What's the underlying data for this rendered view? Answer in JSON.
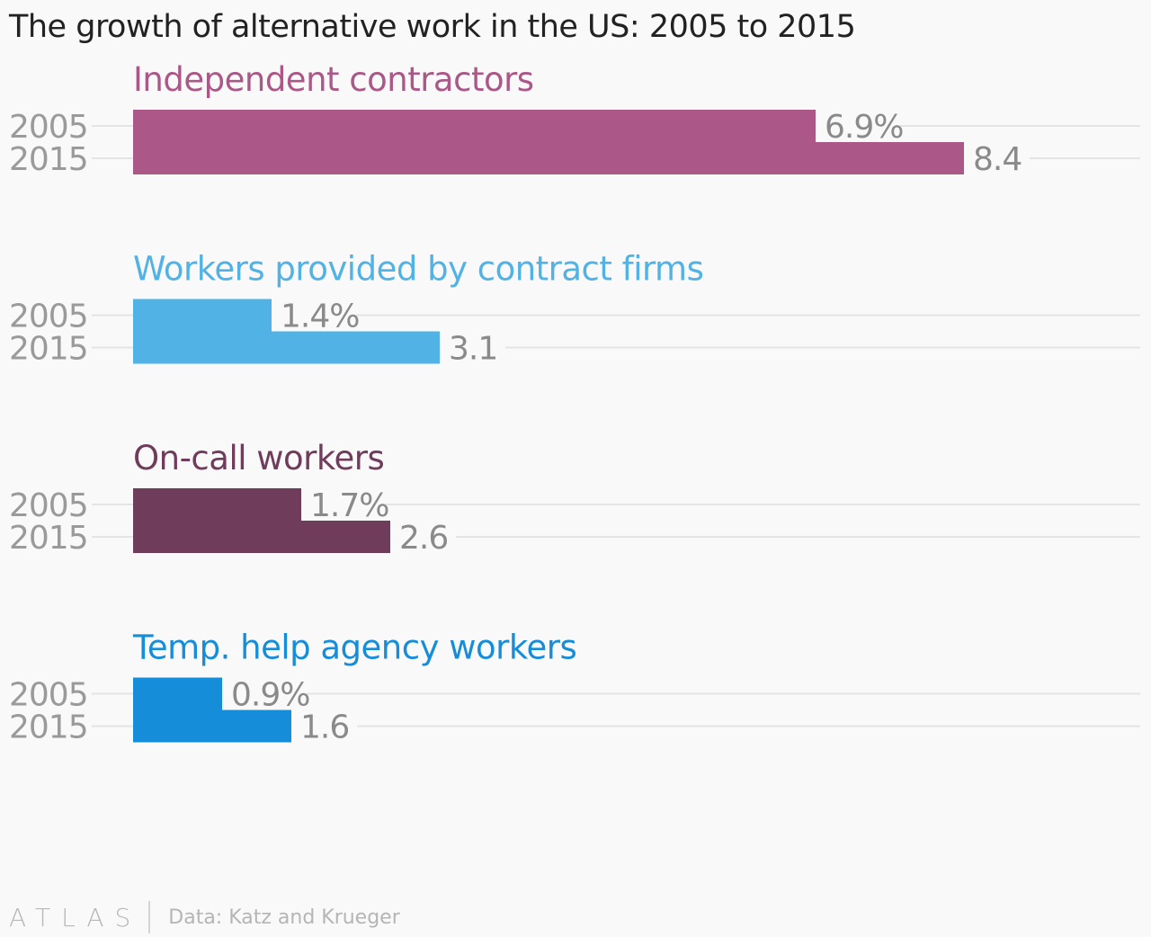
{
  "title": "The growth of alternative work in the US: 2005 to 2015",
  "footer": {
    "brand": "ATLAS",
    "source": "Data: Katz and Krueger"
  },
  "chart_data": {
    "type": "bar",
    "orientation": "horizontal",
    "title": "The growth of alternative work in the US: 2005 to 2015",
    "years": [
      "2005",
      "2015"
    ],
    "xlim": [
      0,
      10
    ],
    "grid": true,
    "groups": [
      {
        "name": "Independent contractors",
        "color": "#ab5787",
        "values": [
          6.9,
          8.4
        ],
        "labels": [
          "6.9%",
          "8.4"
        ]
      },
      {
        "name": "Workers provided by contract firms",
        "color": "#51b2e5",
        "values": [
          1.4,
          3.1
        ],
        "labels": [
          "1.4%",
          "3.1"
        ]
      },
      {
        "name": "On-call workers",
        "color": "#703c5c",
        "values": [
          1.7,
          2.6
        ],
        "labels": [
          "1.7%",
          "2.6"
        ]
      },
      {
        "name": "Temp. help agency workers",
        "color": "#168dd9",
        "values": [
          0.9,
          1.6
        ],
        "labels": [
          "0.9%",
          "1.6"
        ]
      }
    ]
  }
}
